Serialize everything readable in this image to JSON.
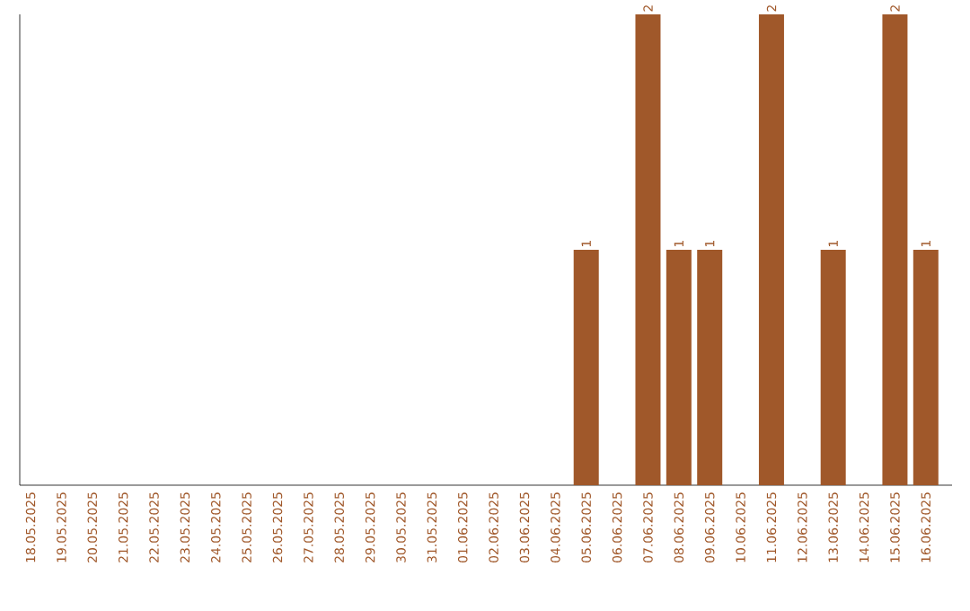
{
  "chart_data": {
    "type": "bar",
    "categories": [
      "18.05.2025",
      "19.05.2025",
      "20.05.2025",
      "21.05.2025",
      "22.05.2025",
      "23.05.2025",
      "24.05.2025",
      "25.05.2025",
      "26.05.2025",
      "27.05.2025",
      "28.05.2025",
      "29.05.2025",
      "30.05.2025",
      "31.05.2025",
      "01.06.2025",
      "02.06.2025",
      "03.06.2025",
      "04.06.2025",
      "05.06.2025",
      "06.06.2025",
      "07.06.2025",
      "08.06.2025",
      "09.06.2025",
      "10.06.2025",
      "11.06.2025",
      "12.06.2025",
      "13.06.2025",
      "14.06.2025",
      "15.06.2025",
      "16.06.2025"
    ],
    "values": [
      null,
      null,
      null,
      null,
      null,
      null,
      null,
      null,
      null,
      null,
      null,
      null,
      null,
      null,
      null,
      null,
      null,
      null,
      1,
      null,
      2,
      1,
      1,
      null,
      2,
      null,
      1,
      null,
      2,
      1
    ],
    "data_labels": true,
    "color": "#a0582a"
  }
}
